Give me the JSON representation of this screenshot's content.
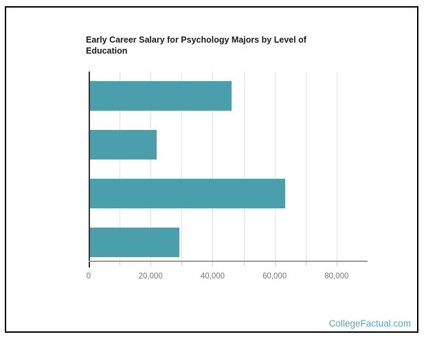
{
  "chart": {
    "title_lines": [
      "Early Career Salary for Psychology Majors by Level of",
      "Education"
    ]
  },
  "chart_data": {
    "type": "bar",
    "orientation": "horizontal",
    "title": "Early Career Salary for Psychology Majors by Level of Education",
    "xlabel": "",
    "ylabel": "",
    "values": [
      45700,
      21600,
      63000,
      28800
    ],
    "categories_visible": false,
    "xlim": [
      0,
      90000
    ],
    "x_ticks": [
      0,
      10000,
      20000,
      30000,
      40000,
      50000,
      60000,
      70000,
      80000
    ],
    "x_tick_labels": [
      {
        "value": 0,
        "label": "0"
      },
      {
        "value": 20000,
        "label": "20,000"
      },
      {
        "value": 40000,
        "label": "40,000"
      },
      {
        "value": 60000,
        "label": "60,000"
      },
      {
        "value": 80000,
        "label": "80,000"
      }
    ],
    "grid": true,
    "legend": false
  },
  "colors": {
    "background": "#ffffff",
    "border": "#000000",
    "title": "#1a1a1a",
    "bar": "#4a9fad",
    "gridline": "#e0e0e0",
    "y_axis": "#333333",
    "x_axis": "#999999",
    "tick": "#cccccc",
    "tick_label": "#757575",
    "brand": "#56a8c7"
  },
  "footer": {
    "brand": "CollegeFactual.com"
  }
}
